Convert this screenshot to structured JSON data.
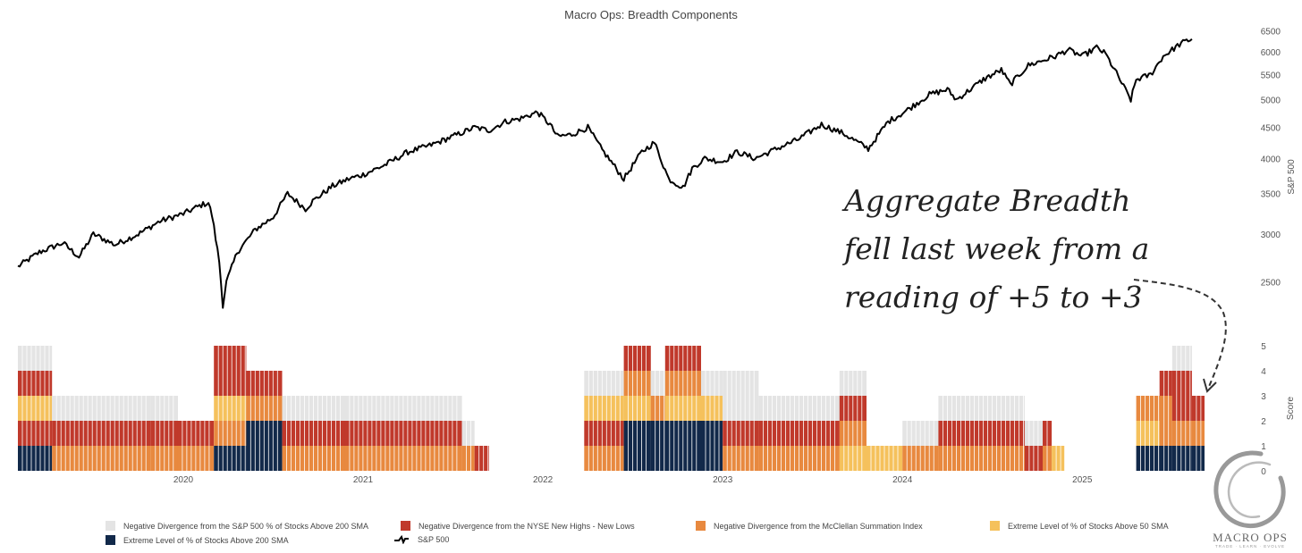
{
  "chart_data": [
    {
      "type": "line",
      "title": "Macro Ops: Breadth Components",
      "series_name": "S&P 500",
      "ylabel": "S&P 500",
      "y_scale": "log",
      "ylim": [
        2150,
        6600
      ],
      "y_ticks": [
        2500,
        3000,
        3500,
        4000,
        4500,
        5000,
        5500,
        6000,
        6500
      ],
      "x_range": [
        2019.08,
        2025.68
      ],
      "x": [
        2019.08,
        2019.2,
        2019.33,
        2019.42,
        2019.5,
        2019.62,
        2019.75,
        2019.87,
        2020.0,
        2020.1,
        2020.14,
        2020.16,
        2020.2,
        2020.22,
        2020.24,
        2020.3,
        2020.4,
        2020.5,
        2020.58,
        2020.68,
        2020.72,
        2020.83,
        2020.92,
        2021.0,
        2021.12,
        2021.25,
        2021.37,
        2021.5,
        2021.62,
        2021.7,
        2021.79,
        2021.87,
        2021.97,
        2022.04,
        2022.08,
        2022.16,
        2022.25,
        2022.33,
        2022.38,
        2022.45,
        2022.55,
        2022.62,
        2022.7,
        2022.78,
        2022.83,
        2022.9,
        2023.0,
        2023.08,
        2023.18,
        2023.3,
        2023.42,
        2023.55,
        2023.67,
        2023.81,
        2023.92,
        2024.0,
        2024.15,
        2024.25,
        2024.3,
        2024.45,
        2024.55,
        2024.6,
        2024.7,
        2024.85,
        2024.92,
        2025.0,
        2025.08,
        2025.13,
        2025.18,
        2025.27,
        2025.3,
        2025.38,
        2025.45,
        2025.55,
        2025.61
      ],
      "values": [
        2650,
        2800,
        2900,
        2750,
        3000,
        2880,
        3000,
        3150,
        3240,
        3350,
        3380,
        3220,
        2700,
        2290,
        2500,
        2800,
        3050,
        3200,
        3500,
        3300,
        3400,
        3600,
        3700,
        3760,
        3900,
        4100,
        4200,
        4350,
        4500,
        4450,
        4600,
        4650,
        4770,
        4550,
        4350,
        4380,
        4500,
        4130,
        3950,
        3700,
        4100,
        4250,
        3700,
        3580,
        3850,
        4000,
        3950,
        4100,
        4000,
        4150,
        4300,
        4550,
        4400,
        4150,
        4600,
        4750,
        5100,
        5200,
        5000,
        5400,
        5600,
        5300,
        5700,
        5900,
        6050,
        5900,
        6100,
        5950,
        5600,
        5000,
        5400,
        5500,
        5900,
        6200,
        6300
      ]
    },
    {
      "type": "stacked-bar",
      "ylabel": "Score",
      "y_ticks": [
        0,
        1,
        2,
        3,
        4,
        5
      ],
      "x_ticks": [
        "2020",
        "2021",
        "2022",
        "2023",
        "2024",
        "2025"
      ],
      "components": [
        {
          "name": "Extreme Level of % of Stocks Above 200 SMA",
          "color": "#12294a"
        },
        {
          "name": "Negative Divergence from the McClellan Summation Index",
          "color": "#e8893f"
        },
        {
          "name": "Extreme Level of % of Stocks Above 50 SMA",
          "color": "#f5c15c"
        },
        {
          "name": "Negative Divergence from the NYSE New Highs - New Lows",
          "color": "#c0392b"
        },
        {
          "name": "Negative Divergence from the S&P 500 % of Stocks Above 200 SMA",
          "color": "#e4e4e4"
        }
      ],
      "periods": [
        {
          "start": 2019.08,
          "end": 2019.27,
          "score": 5,
          "blocks": [
            "#12294a",
            "#c0392b",
            "#f5c15c",
            "#c0392b",
            "#e4e4e4"
          ]
        },
        {
          "start": 2019.27,
          "end": 2019.82,
          "score": 3,
          "blocks": [
            "#e8893f",
            "#c0392b",
            "#e4e4e4"
          ]
        },
        {
          "start": 2019.82,
          "end": 2019.97,
          "score": 3,
          "blocks": [
            "#e8893f",
            "#c0392b",
            "#e4e4e4"
          ]
        },
        {
          "start": 2019.97,
          "end": 2020.17,
          "score": 2,
          "blocks": [
            "#e8893f",
            "#c0392b"
          ]
        },
        {
          "start": 2020.17,
          "end": 2020.35,
          "score": 5,
          "blocks": [
            "#12294a",
            "#e8893f",
            "#f5c15c",
            "#c0392b",
            "#c0392b"
          ]
        },
        {
          "start": 2020.35,
          "end": 2020.55,
          "score": 4,
          "blocks": [
            "#12294a",
            "#12294a",
            "#e8893f",
            "#c0392b"
          ]
        },
        {
          "start": 2020.55,
          "end": 2020.9,
          "score": 3,
          "blocks": [
            "#e8893f",
            "#c0392b",
            "#e4e4e4"
          ]
        },
        {
          "start": 2020.9,
          "end": 2021.55,
          "score": 3,
          "blocks": [
            "#e8893f",
            "#c0392b",
            "#e4e4e4"
          ]
        },
        {
          "start": 2021.55,
          "end": 2021.62,
          "score": 2,
          "blocks": [
            "#e8893f",
            "#e4e4e4"
          ]
        },
        {
          "start": 2021.62,
          "end": 2021.7,
          "score": 1,
          "blocks": [
            "#c0392b"
          ]
        },
        {
          "start": 2022.23,
          "end": 2022.45,
          "score": 4,
          "blocks": [
            "#e8893f",
            "#c0392b",
            "#f5c15c",
            "#e4e4e4"
          ]
        },
        {
          "start": 2022.45,
          "end": 2022.6,
          "score": 5,
          "blocks": [
            "#12294a",
            "#12294a",
            "#f5c15c",
            "#e8893f",
            "#c0392b"
          ]
        },
        {
          "start": 2022.6,
          "end": 2022.68,
          "score": 4,
          "blocks": [
            "#12294a",
            "#12294a",
            "#e8893f",
            "#e4e4e4"
          ]
        },
        {
          "start": 2022.68,
          "end": 2022.88,
          "score": 5,
          "blocks": [
            "#12294a",
            "#12294a",
            "#f5c15c",
            "#e8893f",
            "#c0392b"
          ]
        },
        {
          "start": 2022.88,
          "end": 2023.0,
          "score": 4,
          "blocks": [
            "#12294a",
            "#12294a",
            "#f5c15c",
            "#e4e4e4"
          ]
        },
        {
          "start": 2023.0,
          "end": 2023.2,
          "score": 4,
          "blocks": [
            "#e8893f",
            "#c0392b",
            "#e4e4e4",
            "#e4e4e4"
          ]
        },
        {
          "start": 2023.2,
          "end": 2023.65,
          "score": 3,
          "blocks": [
            "#e8893f",
            "#c0392b",
            "#e4e4e4"
          ]
        },
        {
          "start": 2023.65,
          "end": 2023.8,
          "score": 4,
          "blocks": [
            "#f5c15c",
            "#e8893f",
            "#c0392b",
            "#e4e4e4"
          ]
        },
        {
          "start": 2023.8,
          "end": 2024.0,
          "score": 1,
          "blocks": [
            "#f5c15c"
          ]
        },
        {
          "start": 2024.0,
          "end": 2024.2,
          "score": 2,
          "blocks": [
            "#e8893f",
            "#e4e4e4"
          ]
        },
        {
          "start": 2024.2,
          "end": 2024.68,
          "score": 3,
          "blocks": [
            "#e8893f",
            "#c0392b",
            "#e4e4e4"
          ]
        },
        {
          "start": 2024.68,
          "end": 2024.78,
          "score": 2,
          "blocks": [
            "#c0392b",
            "#e4e4e4"
          ]
        },
        {
          "start": 2024.78,
          "end": 2024.83,
          "score": 2,
          "blocks": [
            "#e8893f",
            "#c0392b"
          ]
        },
        {
          "start": 2024.83,
          "end": 2024.9,
          "score": 1,
          "blocks": [
            "#f5c15c"
          ]
        },
        {
          "start": 2025.3,
          "end": 2025.43,
          "score": 3,
          "blocks": [
            "#12294a",
            "#f5c15c",
            "#e8893f"
          ]
        },
        {
          "start": 2025.43,
          "end": 2025.5,
          "score": 4,
          "blocks": [
            "#12294a",
            "#e8893f",
            "#e8893f",
            "#c0392b"
          ]
        },
        {
          "start": 2025.5,
          "end": 2025.61,
          "score": 5,
          "blocks": [
            "#12294a",
            "#e8893f",
            "#c0392b",
            "#c0392b",
            "#e4e4e4"
          ]
        },
        {
          "start": 2025.61,
          "end": 2025.68,
          "score": 3,
          "blocks": [
            "#12294a",
            "#e8893f",
            "#c0392b"
          ]
        }
      ]
    }
  ],
  "annotation": {
    "lines": [
      "Aggregate Breadth",
      "fell last week from a",
      "reading of +5 to +3"
    ]
  },
  "legend": [
    {
      "label": "Negative Divergence from the S&P 500 % of Stocks Above 200 SMA",
      "color": "#e4e4e4"
    },
    {
      "label": "Negative Divergence from the NYSE New Highs - New Lows",
      "color": "#c0392b"
    },
    {
      "label": "Negative Divergence from the McClellan Summation Index",
      "color": "#e8893f"
    },
    {
      "label": "Extreme Level of % of Stocks Above 50 SMA",
      "color": "#f5c15c"
    },
    {
      "label": "Extreme Level of % of Stocks Above 200 SMA",
      "color": "#12294a"
    },
    {
      "label": "S&P 500",
      "color": "#000000"
    }
  ],
  "logo": {
    "name": "MACRO OPS",
    "tagline": "TRADE · LEARN · EVOLVE"
  }
}
